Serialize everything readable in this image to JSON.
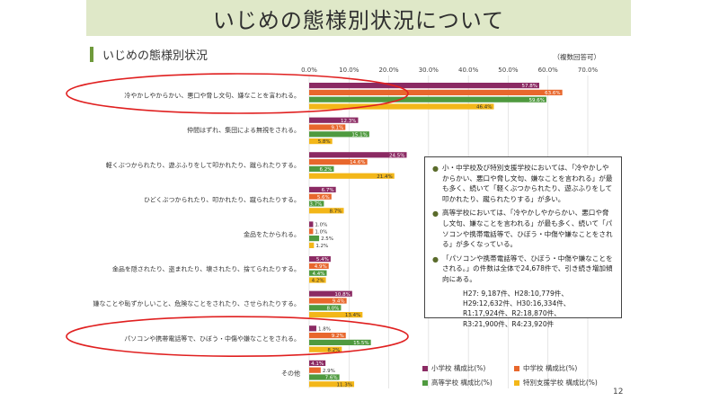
{
  "slide": {
    "title": "いじめの態様別状況について",
    "section_label": "いじめの態様別状況",
    "page_number": "12"
  },
  "colors": {
    "title_bg": "#dfe8c8",
    "accent": "#6f9a3b",
    "highlight": "#e02020"
  },
  "chart_data": {
    "type": "bar",
    "orientation": "horizontal",
    "note": "（複数回答可）",
    "xlim": [
      0,
      70
    ],
    "tick_labels": [
      "0.0%",
      "10.0%",
      "20.0%",
      "30.0%",
      "40.0%",
      "50.0%",
      "60.0%",
      "70.0%"
    ],
    "categories": [
      "冷やかしやからかい、悪口や脅し文句、嫌なことを言われる。",
      "仲間はずれ、集団による無視をされる。",
      "軽くぶつかられたり、遊ぶふりをして叩かれたり、蹴られたりする。",
      "ひどくぶつかられたり、叩かれたり、蹴られたりする。",
      "金品をたかられる。",
      "金品を隠されたり、盗まれたり、壊されたり、捨てられたりする。",
      "嫌なことや恥ずかしいこと、危険なことをされたり、させられたりする。",
      "パソコンや携帯電話等で、ひぼう・中傷や嫌なことをされる。",
      "その他"
    ],
    "series": [
      {
        "name": "小学校 構成比(%)",
        "color": "#8b2a63",
        "values": [
          57.8,
          12.3,
          24.5,
          6.7,
          1.0,
          5.4,
          10.8,
          1.8,
          4.1
        ],
        "labels": [
          "57.8%",
          "12.3%",
          "24.5%",
          "6.7%",
          "1.0%",
          "5.4%",
          "10.8%",
          "1.8%",
          "4.1%"
        ]
      },
      {
        "name": "中学校 構成比(%)",
        "color": "#e8672c",
        "values": [
          63.6,
          9.1,
          14.6,
          5.6,
          1.0,
          4.9,
          9.4,
          9.2,
          2.9
        ],
        "labels": [
          "63.6%",
          "9.1%",
          "14.6%",
          "5.6%",
          "1.0%",
          "4.9%",
          "9.4%",
          "9.2%",
          "2.9%"
        ]
      },
      {
        "name": "高等学校 構成比(%)",
        "color": "#4f9a3f",
        "values": [
          59.6,
          15.1,
          6.2,
          3.7,
          2.5,
          4.4,
          8.0,
          15.5,
          7.6
        ],
        "labels": [
          "59.6%",
          "15.1%",
          "6.2%",
          "3.7%",
          "2.5%",
          "4.4%",
          "8.0%",
          "15.5%",
          "7.6%"
        ]
      },
      {
        "name": "特別支援学校 構成比(%)",
        "color": "#f3b719",
        "values": [
          46.4,
          5.8,
          21.4,
          8.7,
          1.2,
          4.2,
          13.4,
          8.2,
          11.3
        ],
        "labels": [
          "46.4%",
          "5.8%",
          "21.4%",
          "8.7%",
          "1.2%",
          "4.2%",
          "13.4%",
          "8.2%",
          "11.3%"
        ]
      }
    ],
    "highlighted_categories": [
      0,
      7
    ]
  },
  "notes": {
    "items": [
      "小・中学校及び特別支援学校においては、「冷やかしやからかい、悪口や脅し文句、嫌なことを言われる」が最も多く、続いて「軽くぶつかられたり、遊ぶふりをして叩かれたり、蹴られたりする」が多い。",
      "高等学校においては、「冷やかしやからかい、悪口や脅し文句、嫌なことを言われる」が最も多く、続いて「パソコンや携帯電話等で、ひぼう・中傷や嫌なことをされる」が多くなっている。",
      "「パソコンや携帯電話等で、ひぼう・中傷や嫌なことをされる。」の件数は全体で24,678件で、引き続き増加傾向にある。"
    ],
    "counts": [
      "H27: 9,187件、H28:10,779件、",
      "H29:12,632件、H30:16,334件、",
      "R1:17,924件、R2:18,870件、",
      "R3:21,900件、R4:23,920件"
    ]
  },
  "legend": {
    "items": [
      "小学校 構成比(%)",
      "中学校 構成比(%)",
      "高等学校 構成比(%)",
      "特別支援学校 構成比(%)"
    ]
  }
}
